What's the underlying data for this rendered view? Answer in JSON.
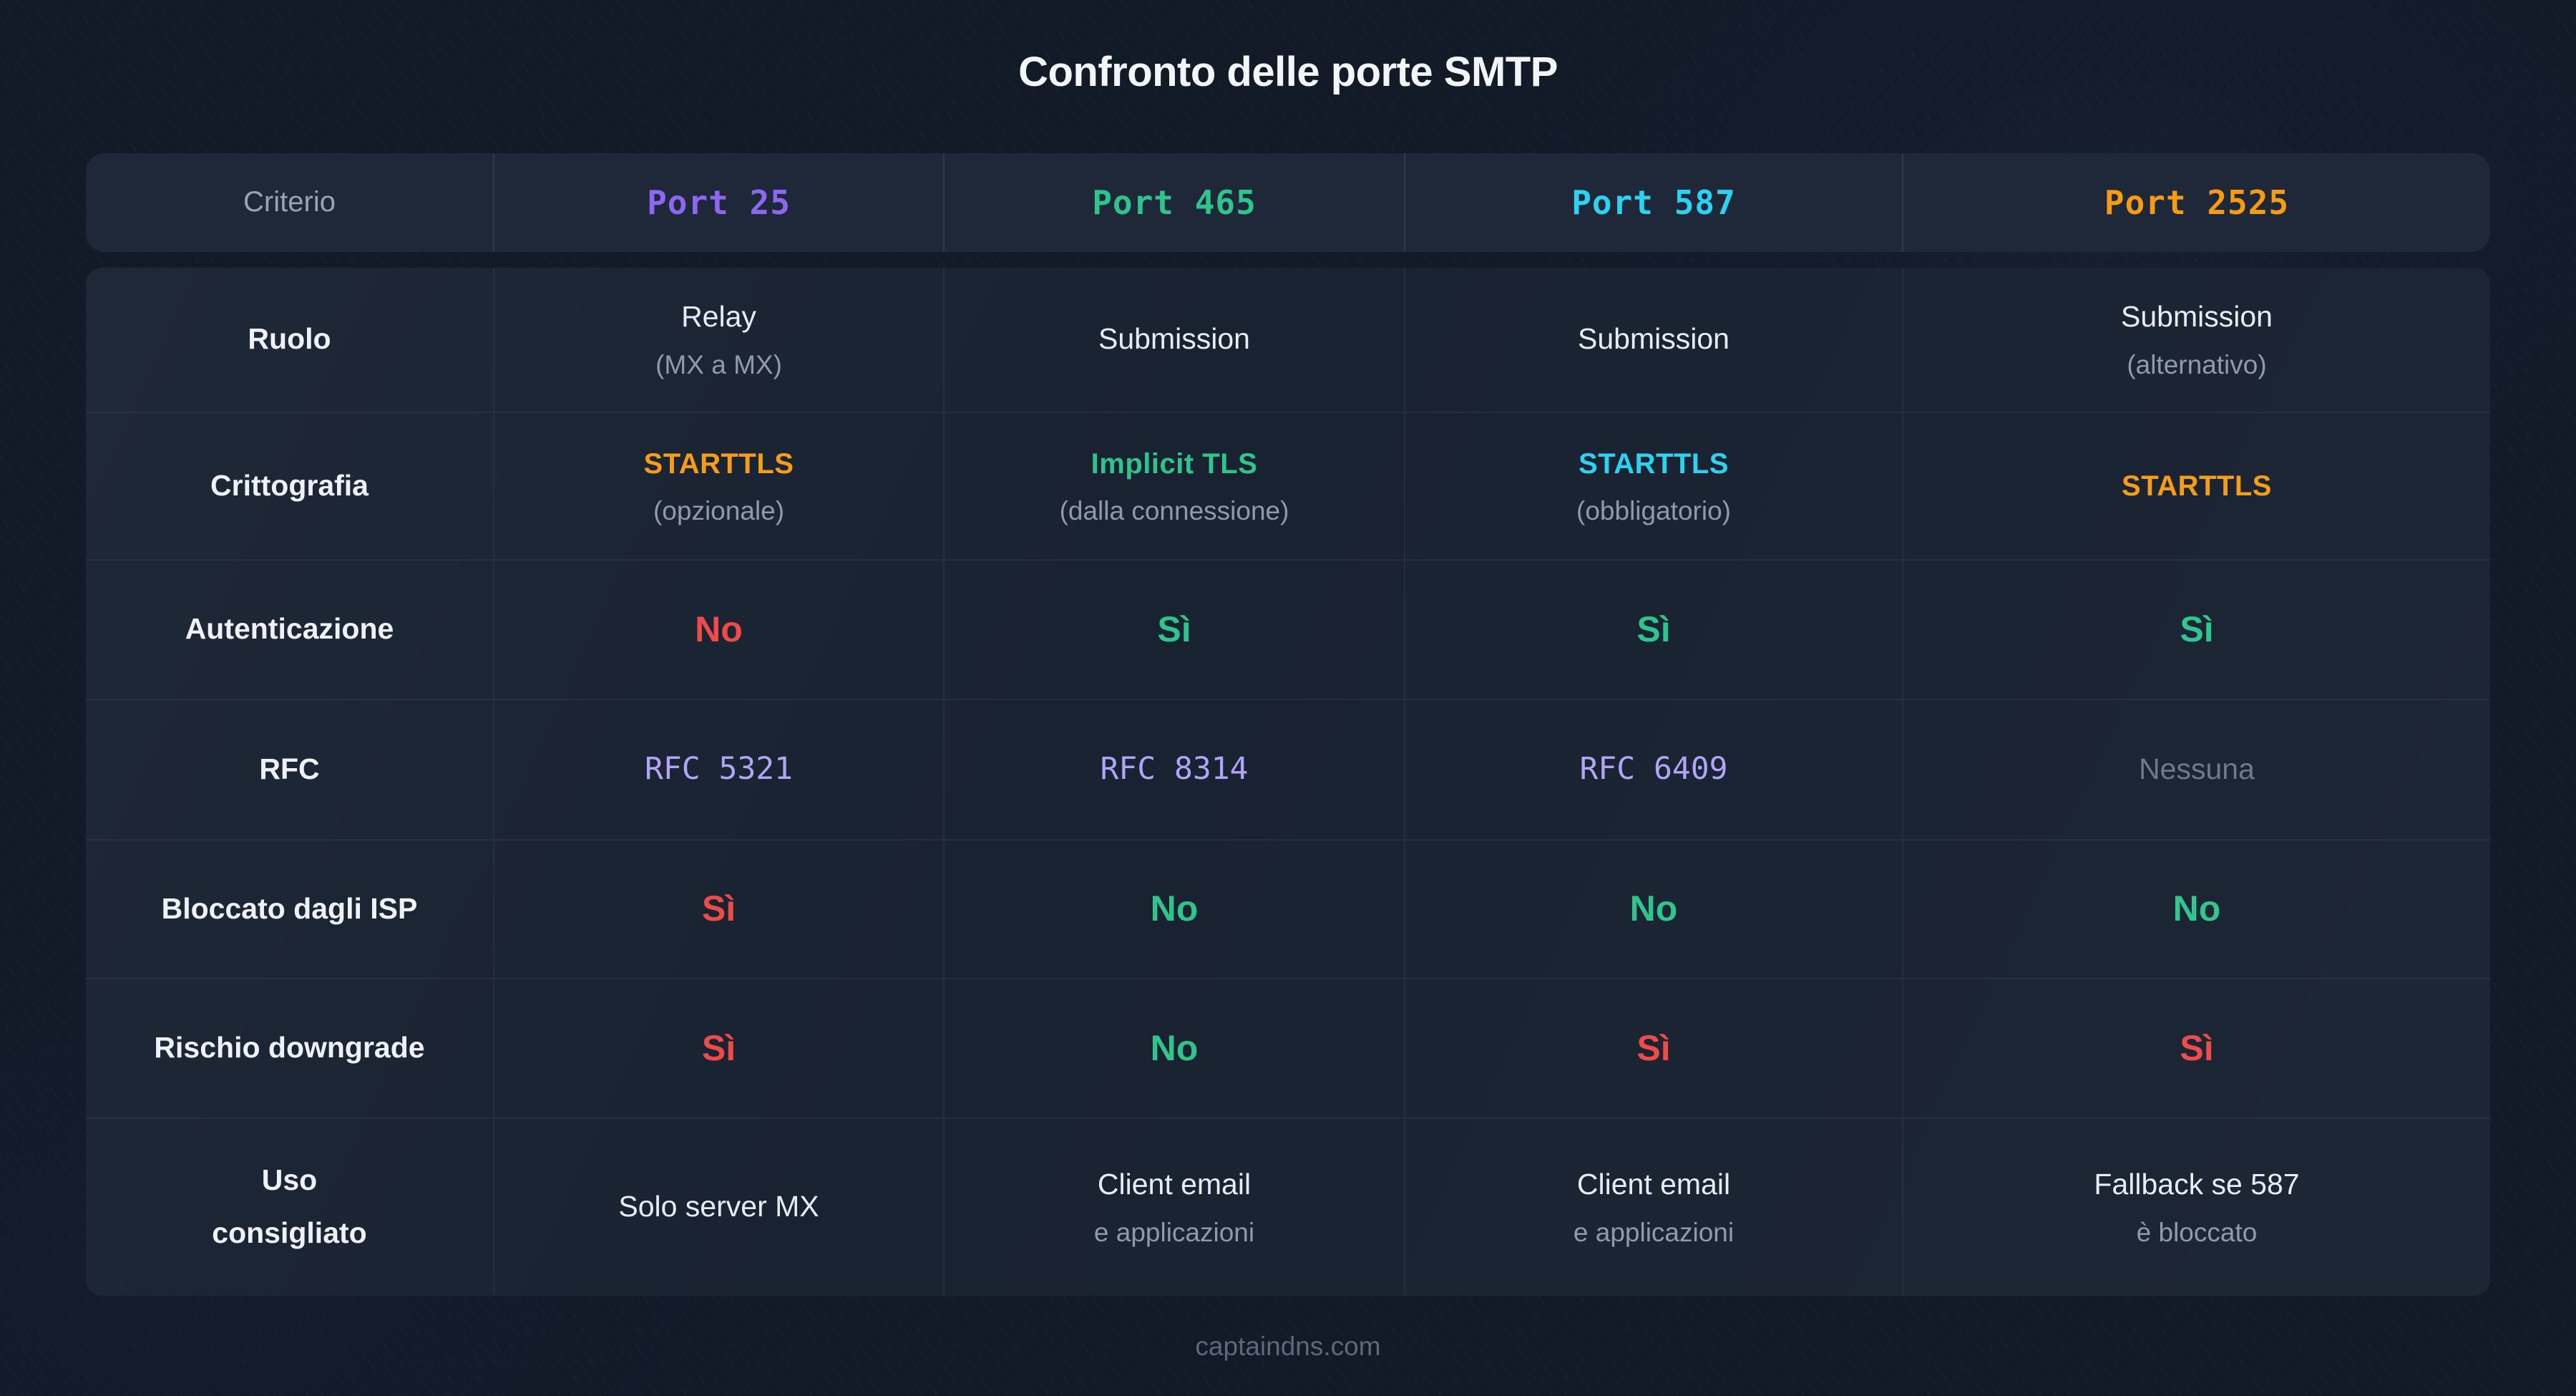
{
  "title": "Confronto delle porte SMTP",
  "footer": "captaindns.com",
  "colors": {
    "purple": "#8d66f2",
    "green": "#2fc48c",
    "cyan": "#2bd3f0",
    "orange": "#f59c14",
    "red": "#ee4947",
    "lavender": "#b3a3f8"
  },
  "table": {
    "header": {
      "criterio": "Criterio",
      "ports": [
        {
          "label": "Port 25",
          "color": "purple"
        },
        {
          "label": "Port 465",
          "color": "green"
        },
        {
          "label": "Port 587",
          "color": "cyan"
        },
        {
          "label": "Port 2525",
          "color": "orange"
        }
      ]
    },
    "rows": [
      {
        "label": "Ruolo",
        "cells": [
          {
            "main": "Relay",
            "sub": "(MX a MX)"
          },
          {
            "main": "Submission"
          },
          {
            "main": "Submission"
          },
          {
            "main": "Submission",
            "sub": "(alternativo)"
          }
        ]
      },
      {
        "label": "Crittografia",
        "cells": [
          {
            "main": "STARTTLS",
            "sub": "(opzionale)",
            "color": "orange",
            "emphasis": true
          },
          {
            "main": "Implicit TLS",
            "sub": "(dalla connessione)",
            "color": "green",
            "emphasis": true
          },
          {
            "main": "STARTTLS",
            "sub": "(obbligatorio)",
            "color": "cyan",
            "emphasis": true
          },
          {
            "main": "STARTTLS",
            "color": "orange",
            "emphasis": true
          }
        ]
      },
      {
        "label": "Autenticazione",
        "cells": [
          {
            "main": "No",
            "tone": "red"
          },
          {
            "main": "Sì",
            "tone": "green"
          },
          {
            "main": "Sì",
            "tone": "green"
          },
          {
            "main": "Sì",
            "tone": "green"
          }
        ]
      },
      {
        "label": "RFC",
        "cells": [
          {
            "main": "RFC 5321",
            "color": "lavender",
            "mono": true
          },
          {
            "main": "RFC 8314",
            "color": "lavender",
            "mono": true
          },
          {
            "main": "RFC 6409",
            "color": "lavender",
            "mono": true
          },
          {
            "main": "Nessuna",
            "muted": true
          }
        ]
      },
      {
        "label": "Bloccato dagli ISP",
        "cells": [
          {
            "main": "Sì",
            "tone": "red"
          },
          {
            "main": "No",
            "tone": "green"
          },
          {
            "main": "No",
            "tone": "green"
          },
          {
            "main": "No",
            "tone": "green"
          }
        ]
      },
      {
        "label": "Rischio downgrade",
        "cells": [
          {
            "main": "Sì",
            "tone": "red"
          },
          {
            "main": "No",
            "tone": "green"
          },
          {
            "main": "Sì",
            "tone": "red"
          },
          {
            "main": "Sì",
            "tone": "red"
          }
        ]
      },
      {
        "label": "Uso consigliato",
        "cells": [
          {
            "main": "Solo server MX"
          },
          {
            "main": "Client email",
            "sub": "e applicazioni"
          },
          {
            "main": "Client email",
            "sub": "e applicazioni"
          },
          {
            "main": "Fallback se 587",
            "sub": "è bloccato"
          }
        ]
      }
    ]
  },
  "chart_data": {
    "type": "table",
    "title": "Confronto delle porte SMTP",
    "columns": [
      "Criterio",
      "Port 25",
      "Port 465",
      "Port 587",
      "Port 2525"
    ],
    "rows": [
      [
        "Ruolo",
        "Relay (MX a MX)",
        "Submission",
        "Submission",
        "Submission (alternativo)"
      ],
      [
        "Crittografia",
        "STARTTLS (opzionale)",
        "Implicit TLS (dalla connessione)",
        "STARTTLS (obbligatorio)",
        "STARTTLS"
      ],
      [
        "Autenticazione",
        "No",
        "Sì",
        "Sì",
        "Sì"
      ],
      [
        "RFC",
        "RFC 5321",
        "RFC 8314",
        "RFC 6409",
        "Nessuna"
      ],
      [
        "Bloccato dagli ISP",
        "Sì",
        "No",
        "No",
        "No"
      ],
      [
        "Rischio downgrade",
        "Sì",
        "No",
        "Sì",
        "Sì"
      ],
      [
        "Uso consigliato",
        "Solo server MX",
        "Client email e applicazioni",
        "Client email e applicazioni",
        "Fallback se 587 è bloccato"
      ]
    ]
  }
}
